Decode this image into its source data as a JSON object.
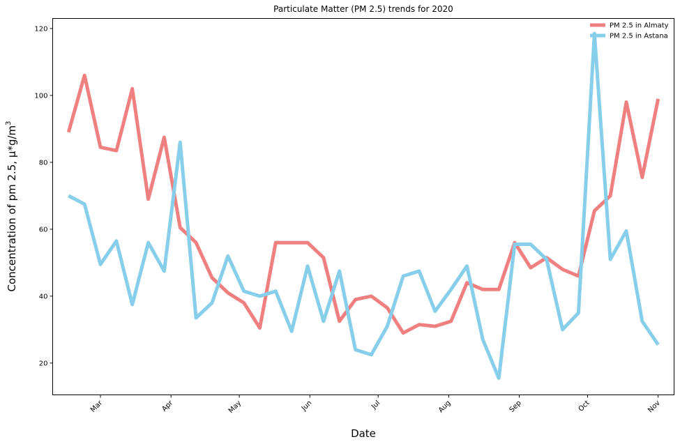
{
  "chart_data": {
    "type": "line",
    "title": "Particulate Matter (PM 2.5) trends for 2020",
    "xlabel": "Date",
    "ylabel": "Concentration of pm 2.5,  µ*g/m",
    "ylabel_superscript": "3",
    "x": [
      "2020-02-16",
      "2020-02-23",
      "2020-03-01",
      "2020-03-08",
      "2020-03-15",
      "2020-03-22",
      "2020-03-29",
      "2020-04-05",
      "2020-04-12",
      "2020-04-19",
      "2020-04-26",
      "2020-05-03",
      "2020-05-10",
      "2020-05-17",
      "2020-05-24",
      "2020-05-31",
      "2020-06-07",
      "2020-06-14",
      "2020-06-21",
      "2020-06-28",
      "2020-07-05",
      "2020-07-12",
      "2020-07-19",
      "2020-07-26",
      "2020-08-02",
      "2020-08-09",
      "2020-08-16",
      "2020-08-23",
      "2020-08-30",
      "2020-09-06",
      "2020-09-13",
      "2020-09-20",
      "2020-09-27",
      "2020-10-04",
      "2020-10-11",
      "2020-10-18",
      "2020-10-25",
      "2020-11-01"
    ],
    "series": [
      {
        "name": "PM 2.5 in Almaty",
        "color": "#F08080",
        "values": [
          89,
          106,
          84.5,
          83.5,
          102,
          69,
          87.5,
          60.5,
          56,
          45.5,
          41,
          38,
          30.5,
          56,
          56,
          56,
          51.5,
          32.5,
          39,
          40,
          36.5,
          29,
          31.5,
          31,
          32.5,
          44,
          42,
          42,
          56,
          48.5,
          51.5,
          48,
          46,
          65.5,
          70,
          98,
          75.5,
          99
        ]
      },
      {
        "name": "PM 2.5 in Astana",
        "color": "#87CEEB",
        "values": [
          70,
          67.5,
          49.5,
          56.5,
          37.5,
          56,
          47.5,
          86,
          33.5,
          38,
          52,
          41.5,
          40,
          41.5,
          29.5,
          49,
          32.5,
          47.5,
          24,
          22.5,
          31,
          46,
          47.5,
          35.5,
          42,
          49,
          27,
          15.5,
          55.5,
          55.5,
          51,
          30,
          35,
          118.5,
          51,
          59.5,
          32.5,
          25.5
        ]
      }
    ],
    "xlim": [
      "2020-02-09",
      "2020-11-08"
    ],
    "ylim": [
      10.5,
      123
    ],
    "yticks": [
      20,
      40,
      60,
      80,
      100,
      120
    ],
    "xticks": [
      {
        "date": "2020-03-01",
        "label": "Mar"
      },
      {
        "date": "2020-04-01",
        "label": "Apr"
      },
      {
        "date": "2020-05-01",
        "label": "May"
      },
      {
        "date": "2020-06-01",
        "label": "Jun"
      },
      {
        "date": "2020-07-01",
        "label": "Jul"
      },
      {
        "date": "2020-08-01",
        "label": "Aug"
      },
      {
        "date": "2020-09-01",
        "label": "Sep"
      },
      {
        "date": "2020-10-01",
        "label": "Oct"
      },
      {
        "date": "2020-11-01",
        "label": "Nov"
      }
    ],
    "legend_position": "top-right",
    "grid": false
  }
}
